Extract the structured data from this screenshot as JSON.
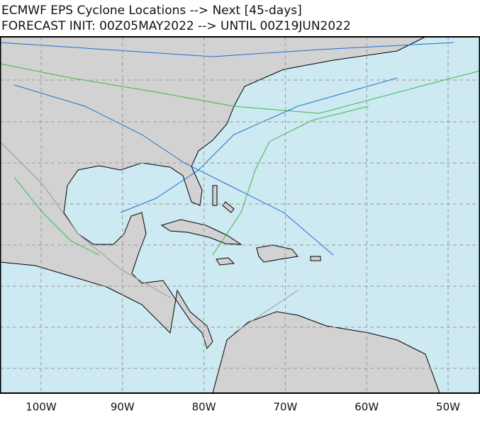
{
  "map": {
    "title": "ECMWF EPS Cyclone Locations --> Next [45-days]",
    "subtitle": "FORECAST INIT: 00Z05MAY2022 --> UNTIL 00Z19JUN2022",
    "lon_labels": [
      "100W",
      "90W",
      "80W",
      "70W",
      "60W",
      "50W"
    ]
  }
}
